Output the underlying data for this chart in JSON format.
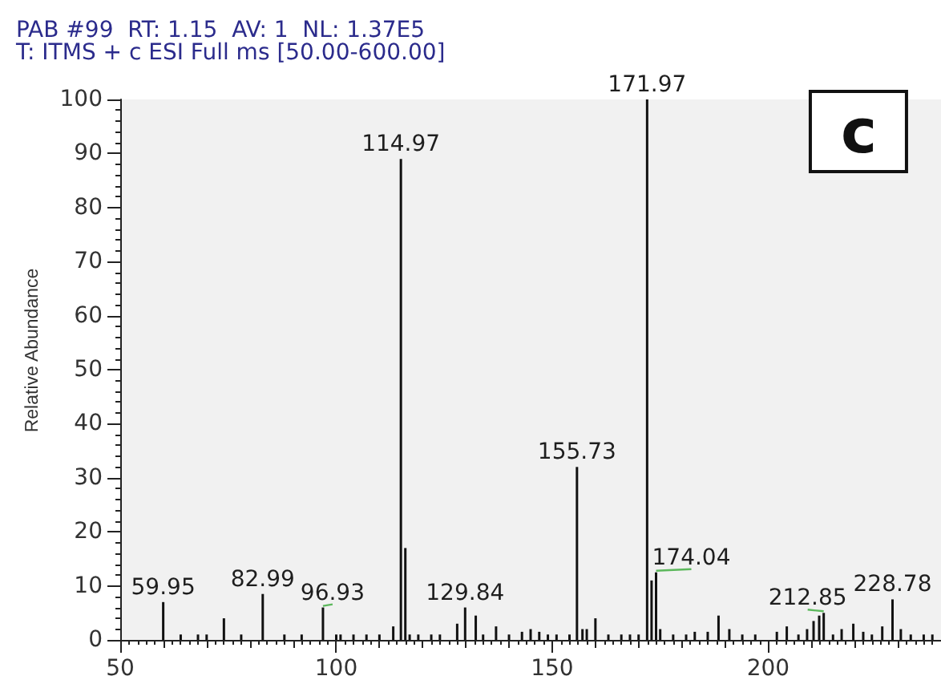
{
  "chart_data": {
    "type": "bar",
    "title": "PAB #99  RT: 1.15  AV: 1  NL: 1.37E5",
    "subtitle": "T: ITMS + c ESI Full ms [50.00-600.00]",
    "ylabel": "Relative Abundance",
    "annotations": [
      "c",
      {
        "text": "59.95",
        "x": 59.95,
        "y": 7
      },
      {
        "text": "82.99",
        "x": 82.99,
        "y": 8.5
      },
      {
        "text": "96.93",
        "x": 96.93,
        "y": 6
      },
      {
        "text": "114.97",
        "x": 114.97,
        "y": 89
      },
      {
        "text": "129.84",
        "x": 129.84,
        "y": 6
      },
      {
        "text": "155.73",
        "x": 155.73,
        "y": 32
      },
      {
        "text": "171.97",
        "x": 171.97,
        "y": 100
      },
      {
        "text": "174.04",
        "x": 174.04,
        "y": 12.5
      },
      {
        "text": "212.85",
        "x": 212.85,
        "y": 5
      },
      {
        "text": "228.78",
        "x": 228.78,
        "y": 7.5
      }
    ],
    "color": "#111111",
    "x": [
      59.95,
      64,
      68,
      70,
      74,
      78,
      82.99,
      88,
      92,
      96.93,
      100,
      101,
      104,
      107,
      110,
      113.2,
      114.97,
      116,
      117,
      119,
      122,
      124,
      128,
      129.84,
      132.3,
      134,
      137,
      140,
      143,
      145,
      147,
      149,
      151,
      154,
      155.73,
      157,
      158,
      160,
      163,
      166,
      168,
      170,
      171.97,
      173,
      174.04,
      175,
      178,
      181,
      183,
      186,
      188.5,
      191,
      194,
      197,
      202,
      204.3,
      207,
      209,
      210.5,
      211.8,
      212.85,
      215,
      217,
      219.7,
      222,
      224,
      226.4,
      228.78,
      230.7,
      233,
      236,
      238
    ],
    "values": [
      7,
      1,
      1,
      1,
      4,
      1,
      8.5,
      1,
      1,
      6,
      1,
      1,
      1,
      1,
      1,
      2.5,
      89,
      17,
      1,
      1,
      1,
      1,
      3,
      6,
      4.5,
      1,
      2.5,
      1,
      1.5,
      2,
      1.5,
      1,
      1,
      1,
      32,
      2,
      2,
      4,
      1,
      1,
      1,
      1,
      100,
      11,
      12.5,
      2,
      1,
      1,
      1.5,
      1.5,
      4.5,
      2,
      1,
      1,
      1.5,
      2.5,
      1,
      2,
      3.5,
      4.5,
      5,
      1,
      2,
      3,
      1.5,
      1,
      2.5,
      7.5,
      2,
      1,
      1,
      1
    ],
    "xlim": [
      50,
      240
    ],
    "xticks": [
      50,
      {
        "value": 52,
        "label": null
      },
      {
        "value": 54,
        "label": null
      },
      {
        "value": 56,
        "label": null
      },
      {
        "value": 58,
        "label": null
      },
      {
        "value": 60,
        "label": null
      },
      {
        "value": 62,
        "label": null
      },
      {
        "value": 64,
        "label": null
      },
      {
        "value": 66,
        "label": null
      },
      {
        "value": 68,
        "label": null
      },
      {
        "value": 70,
        "label": null
      },
      {
        "value": 72,
        "label": null
      },
      {
        "value": 74,
        "label": null
      },
      {
        "value": 76,
        "label": null
      },
      {
        "value": 78,
        "label": null
      },
      {
        "value": 80,
        "label": null
      },
      {
        "value": 82,
        "label": null
      },
      {
        "value": 84,
        "label": null
      },
      {
        "value": 86,
        "label": null
      },
      {
        "value": 88,
        "label": null
      },
      {
        "value": 90,
        "label": null
      },
      {
        "value": 92,
        "label": null
      },
      {
        "value": 94,
        "label": null
      },
      {
        "value": 96,
        "label": null
      },
      {
        "value": 98,
        "label": null
      },
      100,
      {
        "value": 102,
        "label": null
      },
      {
        "value": 104,
        "label": null
      },
      {
        "value": 106,
        "label": null
      },
      {
        "value": 108,
        "label": null
      },
      {
        "value": 110,
        "label": null
      },
      {
        "value": 112,
        "label": null
      },
      {
        "value": 114,
        "label": null
      },
      {
        "value": 116,
        "label": null
      },
      {
        "value": 118,
        "label": null
      },
      {
        "value": 120,
        "label": null
      },
      {
        "value": 122,
        "label": null
      },
      {
        "value": 124,
        "label": null
      },
      {
        "value": 126,
        "label": null
      },
      {
        "value": 128,
        "label": null
      },
      {
        "value": 130,
        "label": null
      },
      {
        "value": 132,
        "label": null
      },
      {
        "value": 134,
        "label": null
      },
      {
        "value": 136,
        "label": null
      },
      {
        "value": 138,
        "label": null
      },
      {
        "value": 140,
        "label": null
      },
      {
        "value": 142,
        "label": null
      },
      {
        "value": 144,
        "label": null
      },
      {
        "value": 146,
        "label": null
      },
      {
        "value": 148,
        "label": null
      },
      150,
      {
        "value": 152,
        "label": null
      },
      {
        "value": 154,
        "label": null
      },
      {
        "value": 156,
        "label": null
      },
      {
        "value": 158,
        "label": null
      },
      {
        "value": 160,
        "label": null
      },
      {
        "value": 162,
        "label": null
      },
      {
        "value": 164,
        "label": null
      },
      {
        "value": 166,
        "label": null
      },
      {
        "value": 168,
        "label": null
      },
      {
        "value": 170,
        "label": null
      },
      {
        "value": 172,
        "label": null
      },
      {
        "value": 174,
        "label": null
      },
      {
        "value": 176,
        "label": null
      },
      {
        "value": 178,
        "label": null
      },
      {
        "value": 180,
        "label": null
      },
      {
        "value": 182,
        "label": null
      },
      {
        "value": 184,
        "label": null
      },
      {
        "value": 186,
        "label": null
      },
      {
        "value": 188,
        "label": null
      },
      {
        "value": 190,
        "label": null
      },
      {
        "value": 192,
        "label": null
      },
      {
        "value": 194,
        "label": null
      },
      {
        "value": 196,
        "label": null
      },
      {
        "value": 198,
        "label": null
      },
      200,
      {
        "value": 202,
        "label": null
      },
      {
        "value": 204,
        "label": null
      },
      {
        "value": 206,
        "label": null
      },
      {
        "value": 208,
        "label": null
      },
      {
        "value": 210,
        "label": null
      },
      {
        "value": 212,
        "label": null
      },
      {
        "value": 214,
        "label": null
      },
      {
        "value": 216,
        "label": null
      },
      {
        "value": 218,
        "label": null
      },
      {
        "value": 220,
        "label": null
      },
      {
        "value": 222,
        "label": null
      },
      {
        "value": 224,
        "label": null
      },
      {
        "value": 226,
        "label": null
      },
      {
        "value": 228,
        "label": null
      },
      {
        "value": 230,
        "label": null
      },
      {
        "value": 232,
        "label": null
      },
      {
        "value": 234,
        "label": null
      },
      {
        "value": 236,
        "label": null
      },
      {
        "value": 238,
        "label": null
      }
    ],
    "ylim": [
      0,
      100
    ],
    "yticks": [
      0,
      {
        "value": 2,
        "label": null
      },
      {
        "value": 4,
        "label": null
      },
      {
        "value": 6,
        "label": null
      },
      {
        "value": 8,
        "label": null
      },
      10,
      {
        "value": 12,
        "label": null
      },
      {
        "value": 14,
        "label": null
      },
      {
        "value": 16,
        "label": null
      },
      {
        "value": 18,
        "label": null
      },
      20,
      {
        "value": 22,
        "label": null
      },
      {
        "value": 24,
        "label": null
      },
      {
        "value": 26,
        "label": null
      },
      {
        "value": 28,
        "label": null
      },
      30,
      {
        "value": 32,
        "label": null
      },
      {
        "value": 34,
        "label": null
      },
      {
        "value": 36,
        "label": null
      },
      {
        "value": 38,
        "label": null
      },
      40,
      {
        "value": 42,
        "label": null
      },
      {
        "value": 44,
        "label": null
      },
      {
        "value": 46,
        "label": null
      },
      {
        "value": 48,
        "label": null
      },
      50,
      {
        "value": 52,
        "label": null
      },
      {
        "value": 54,
        "label": null
      },
      {
        "value": 56,
        "label": null
      },
      {
        "value": 58,
        "label": null
      },
      60,
      {
        "value": 62,
        "label": null
      },
      {
        "value": 64,
        "label": null
      },
      {
        "value": 66,
        "label": null
      },
      {
        "value": 68,
        "label": null
      },
      70,
      {
        "value": 72,
        "label": null
      },
      {
        "value": 74,
        "label": null
      },
      {
        "value": 76,
        "label": null
      },
      {
        "value": 78,
        "label": null
      },
      80,
      {
        "value": 82,
        "label": null
      },
      {
        "value": 84,
        "label": null
      },
      {
        "value": 86,
        "label": null
      },
      {
        "value": 88,
        "label": null
      },
      90,
      {
        "value": 92,
        "label": null
      },
      {
        "value": 94,
        "label": null
      },
      {
        "value": 96,
        "label": null
      },
      {
        "value": 98,
        "label": null
      },
      100
    ]
  }
}
